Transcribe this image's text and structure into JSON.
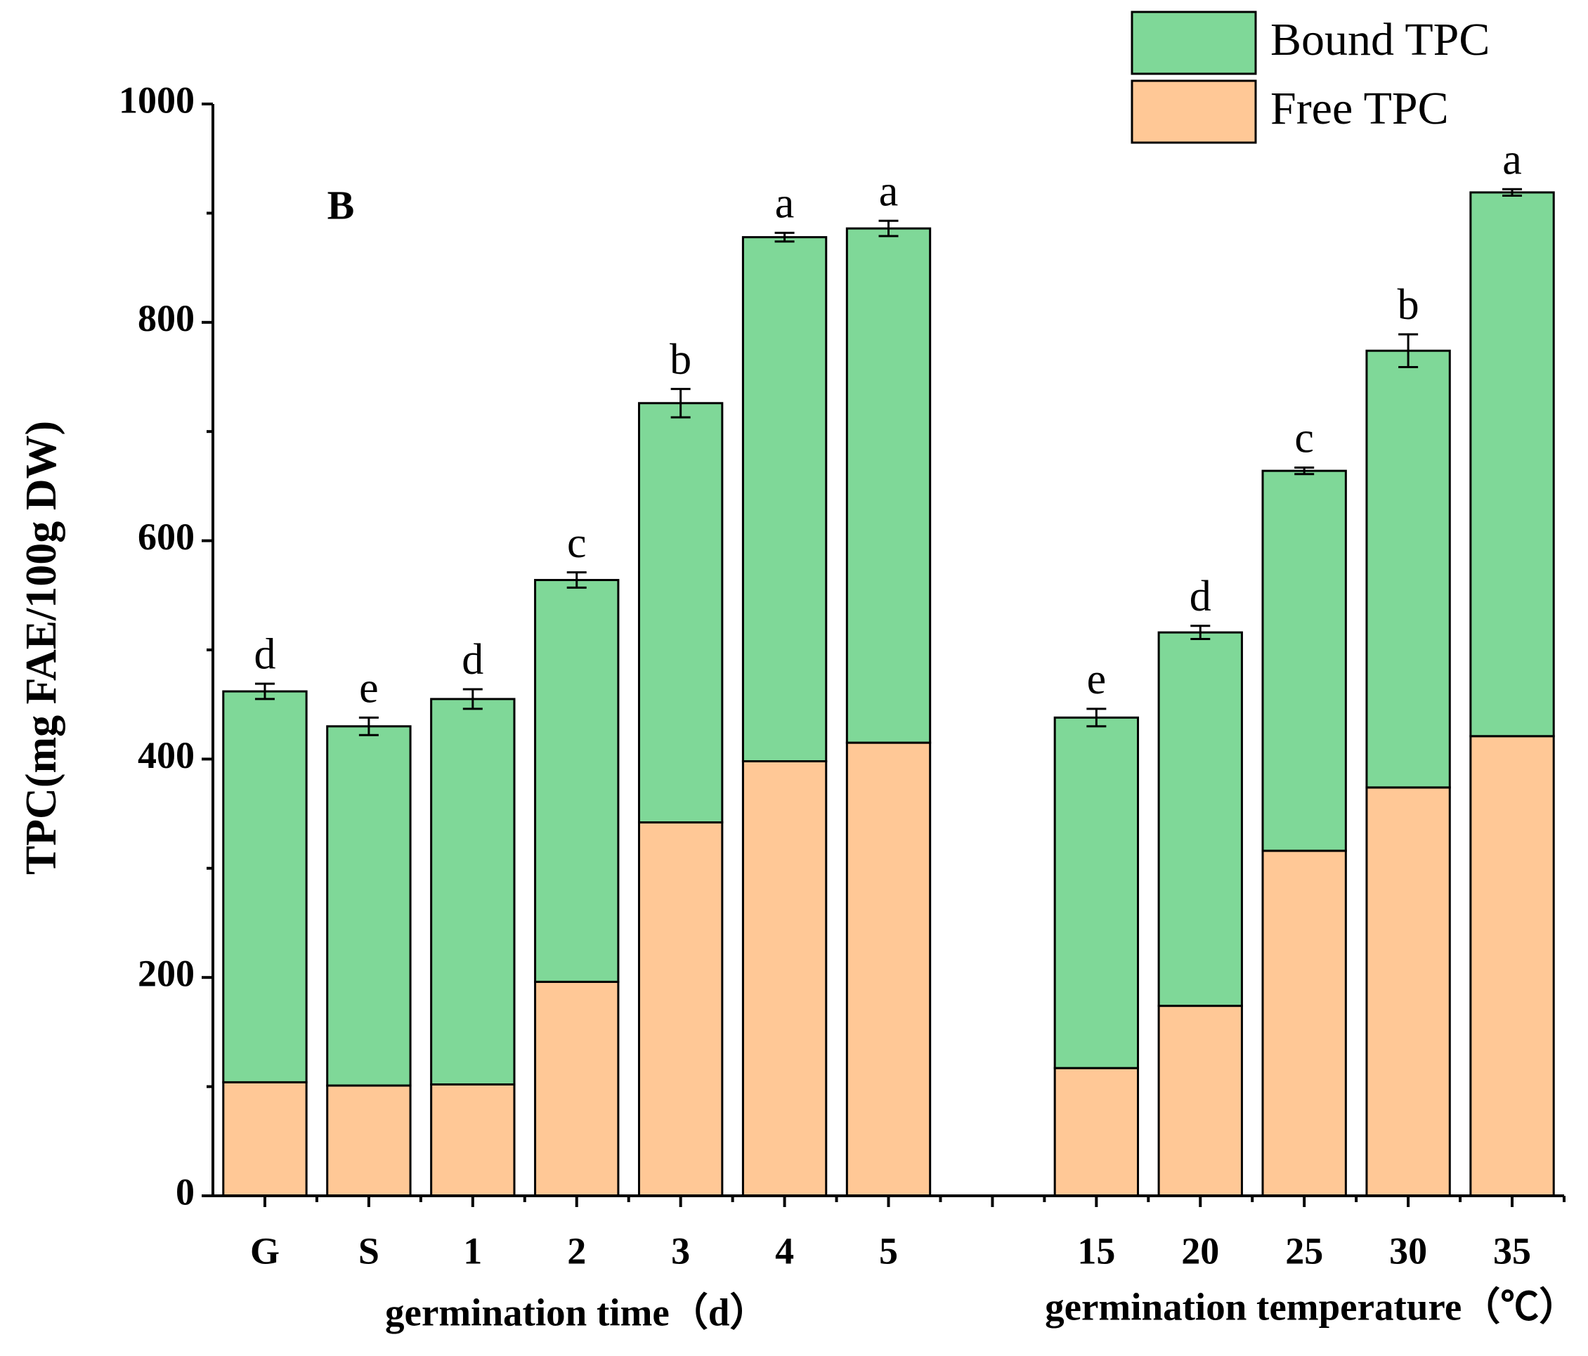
{
  "chart_data": {
    "type": "stacked-bar",
    "panel_label": "B",
    "ylabel": "TPC(mg FAE/100g DW)",
    "group_labels": [
      "germination time（d）",
      "germination temperature（℃）"
    ],
    "categories": [
      "G",
      "S",
      "1",
      "2",
      "3",
      "4",
      "5",
      null,
      "15",
      "20",
      "25",
      "30",
      "35"
    ],
    "series": [
      {
        "name": "Free TPC",
        "color": "#FFC896",
        "values": [
          104,
          101,
          102,
          196,
          342,
          398,
          415,
          null,
          117,
          174,
          316,
          374,
          421
        ]
      },
      {
        "name": "Bound TPC",
        "color": "#7FD898",
        "values": [
          358,
          329,
          353,
          368,
          384,
          480,
          471,
          null,
          321,
          342,
          348,
          400,
          498
        ],
        "errors": [
          7,
          8,
          9,
          7,
          13,
          4,
          7,
          null,
          8,
          6,
          3,
          15,
          3
        ]
      }
    ],
    "letters": [
      "d",
      "e",
      "d",
      "c",
      "b",
      "a",
      "a",
      null,
      "e",
      "d",
      "c",
      "b",
      "a"
    ],
    "ylim": [
      0,
      1000
    ],
    "yticks": [
      0,
      200,
      400,
      600,
      800,
      1000
    ],
    "yminorticks": [
      100,
      300,
      500,
      700,
      900
    ],
    "legend": "top-right"
  }
}
